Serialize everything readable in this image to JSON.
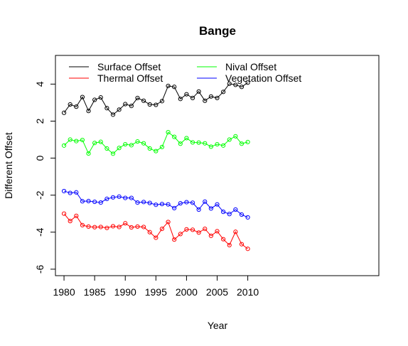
{
  "chart_data": {
    "type": "line",
    "title": "Bange",
    "xlabel": "Year",
    "ylabel": "Different Offset",
    "xlim": [
      1978.6,
      2031.4
    ],
    "ylim": [
      -6.35,
      5.55
    ],
    "grid": false,
    "legend_position": "top-left",
    "x_ticks": [
      1980,
      1985,
      1990,
      1995,
      2000,
      2005,
      2010
    ],
    "y_ticks": [
      -6,
      -4,
      -2,
      0,
      2,
      4
    ],
    "x": [
      1980,
      1981,
      1982,
      1983,
      1984,
      1985,
      1986,
      1987,
      1988,
      1989,
      1990,
      1991,
      1992,
      1993,
      1994,
      1995,
      1996,
      1997,
      1998,
      1999,
      2000,
      2001,
      2002,
      2003,
      2004,
      2005,
      2006,
      2007,
      2008,
      2009,
      2010
    ],
    "series": [
      {
        "name": "Surface Offset",
        "color": "#000000",
        "values": [
          2.45,
          2.9,
          2.78,
          3.3,
          2.55,
          3.15,
          3.28,
          2.7,
          2.35,
          2.62,
          2.92,
          2.82,
          3.25,
          3.1,
          2.9,
          2.88,
          3.08,
          3.9,
          3.85,
          3.2,
          3.45,
          3.25,
          3.6,
          3.1,
          3.33,
          3.25,
          3.58,
          4.02,
          3.96,
          3.85,
          4.08
        ]
      },
      {
        "name": "Thermal Offset",
        "color": "#ff0000",
        "values": [
          -3.0,
          -3.4,
          -3.12,
          -3.62,
          -3.7,
          -3.73,
          -3.72,
          -3.77,
          -3.68,
          -3.72,
          -3.52,
          -3.74,
          -3.7,
          -3.72,
          -4.0,
          -4.3,
          -3.82,
          -3.45,
          -4.4,
          -4.1,
          -3.85,
          -3.87,
          -4.02,
          -3.82,
          -4.2,
          -3.95,
          -4.38,
          -4.7,
          -3.98,
          -4.65,
          -4.9
        ]
      },
      {
        "name": "Nival Offset",
        "color": "#00ff00",
        "values": [
          0.68,
          1.0,
          0.92,
          0.98,
          0.25,
          0.82,
          0.88,
          0.52,
          0.24,
          0.55,
          0.75,
          0.7,
          0.9,
          0.8,
          0.52,
          0.38,
          0.6,
          1.4,
          1.15,
          0.78,
          1.08,
          0.85,
          0.84,
          0.8,
          0.62,
          0.75,
          0.68,
          1.0,
          1.18,
          0.78,
          0.87
        ]
      },
      {
        "name": "Vegetation Offset",
        "color": "#0000ff",
        "values": [
          -1.78,
          -1.88,
          -1.85,
          -2.33,
          -2.32,
          -2.36,
          -2.4,
          -2.2,
          -2.12,
          -2.08,
          -2.15,
          -2.15,
          -2.4,
          -2.37,
          -2.42,
          -2.52,
          -2.48,
          -2.5,
          -2.7,
          -2.44,
          -2.38,
          -2.41,
          -2.78,
          -2.35,
          -2.72,
          -2.5,
          -2.9,
          -3.02,
          -2.78,
          -3.05,
          -3.2
        ]
      }
    ]
  }
}
